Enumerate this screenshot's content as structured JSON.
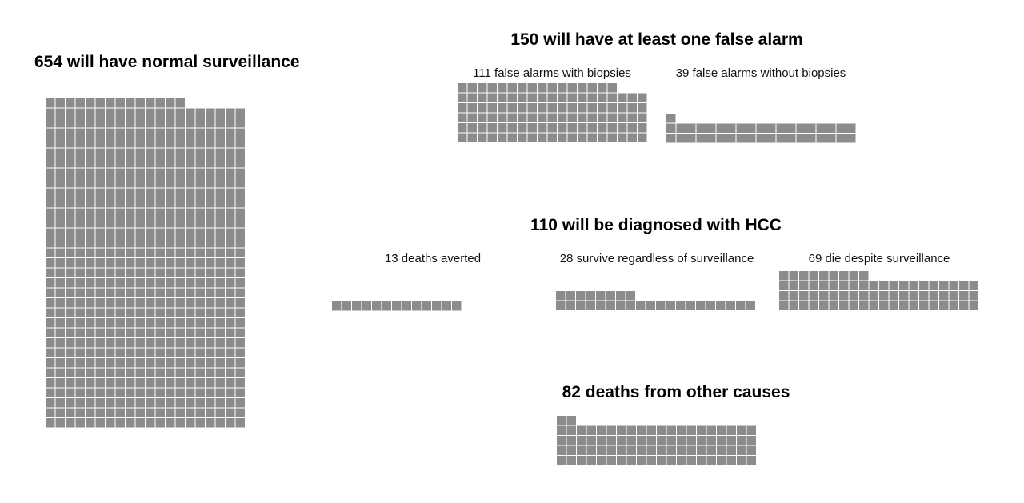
{
  "colors": {
    "cell": "#8c8c8c",
    "background": "#ffffff"
  },
  "chart_data": {
    "type": "waffle",
    "groups": [
      {
        "id": "normal",
        "title": "654 will have normal surveillance",
        "subgroups": [
          {
            "id": "normal-all",
            "label": "",
            "count": 654
          }
        ]
      },
      {
        "id": "false-alarm",
        "title": "150 will have at least one false alarm",
        "subgroups": [
          {
            "id": "with-biopsies",
            "label": "111 false alarms with biopsies",
            "count": 111
          },
          {
            "id": "without-biopsies",
            "label": "39 false alarms without biopsies",
            "count": 39
          }
        ]
      },
      {
        "id": "hcc",
        "title": "110 will be diagnosed with HCC",
        "subgroups": [
          {
            "id": "averted",
            "label": "13 deaths averted",
            "count": 13
          },
          {
            "id": "survive",
            "label": "28 survive regardless of surveillance",
            "count": 28
          },
          {
            "id": "die",
            "label": "69 die despite surveillance",
            "count": 69
          }
        ]
      },
      {
        "id": "other-deaths",
        "title": "82 deaths from other causes",
        "subgroups": [
          {
            "id": "other-all",
            "label": "",
            "count": 82
          }
        ]
      }
    ]
  }
}
